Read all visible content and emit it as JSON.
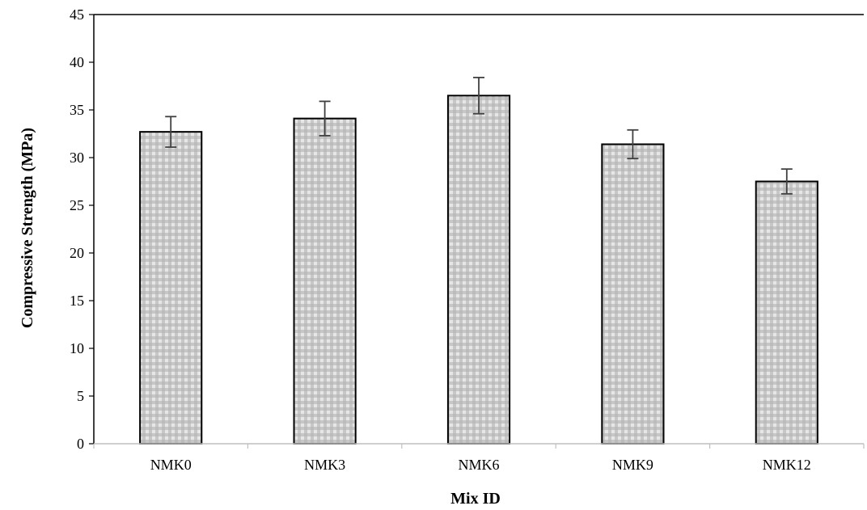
{
  "chart_data": {
    "type": "bar",
    "title": "",
    "xlabel": "Mix ID",
    "ylabel": "Compressive Strength (MPa)",
    "categories": [
      "NMK0",
      "NMK3",
      "NMK6",
      "NMK9",
      "NMK12"
    ],
    "values": [
      32.7,
      34.1,
      36.5,
      31.4,
      27.5
    ],
    "error": [
      1.6,
      1.8,
      1.9,
      1.5,
      1.3
    ],
    "ylim": [
      0,
      45
    ],
    "yticks": [
      "0",
      "5",
      "10",
      "15",
      "20",
      "25",
      "30",
      "35",
      "40",
      "45"
    ],
    "grid": false,
    "legend": "none",
    "colors": {
      "bar_light": "#e6e6e6",
      "bar_dark": "#b3b3b3",
      "bar_edge": "#000000",
      "error_bar": "#404040",
      "x_axis": "#bfbfbf",
      "y_axis": "#000000"
    }
  }
}
